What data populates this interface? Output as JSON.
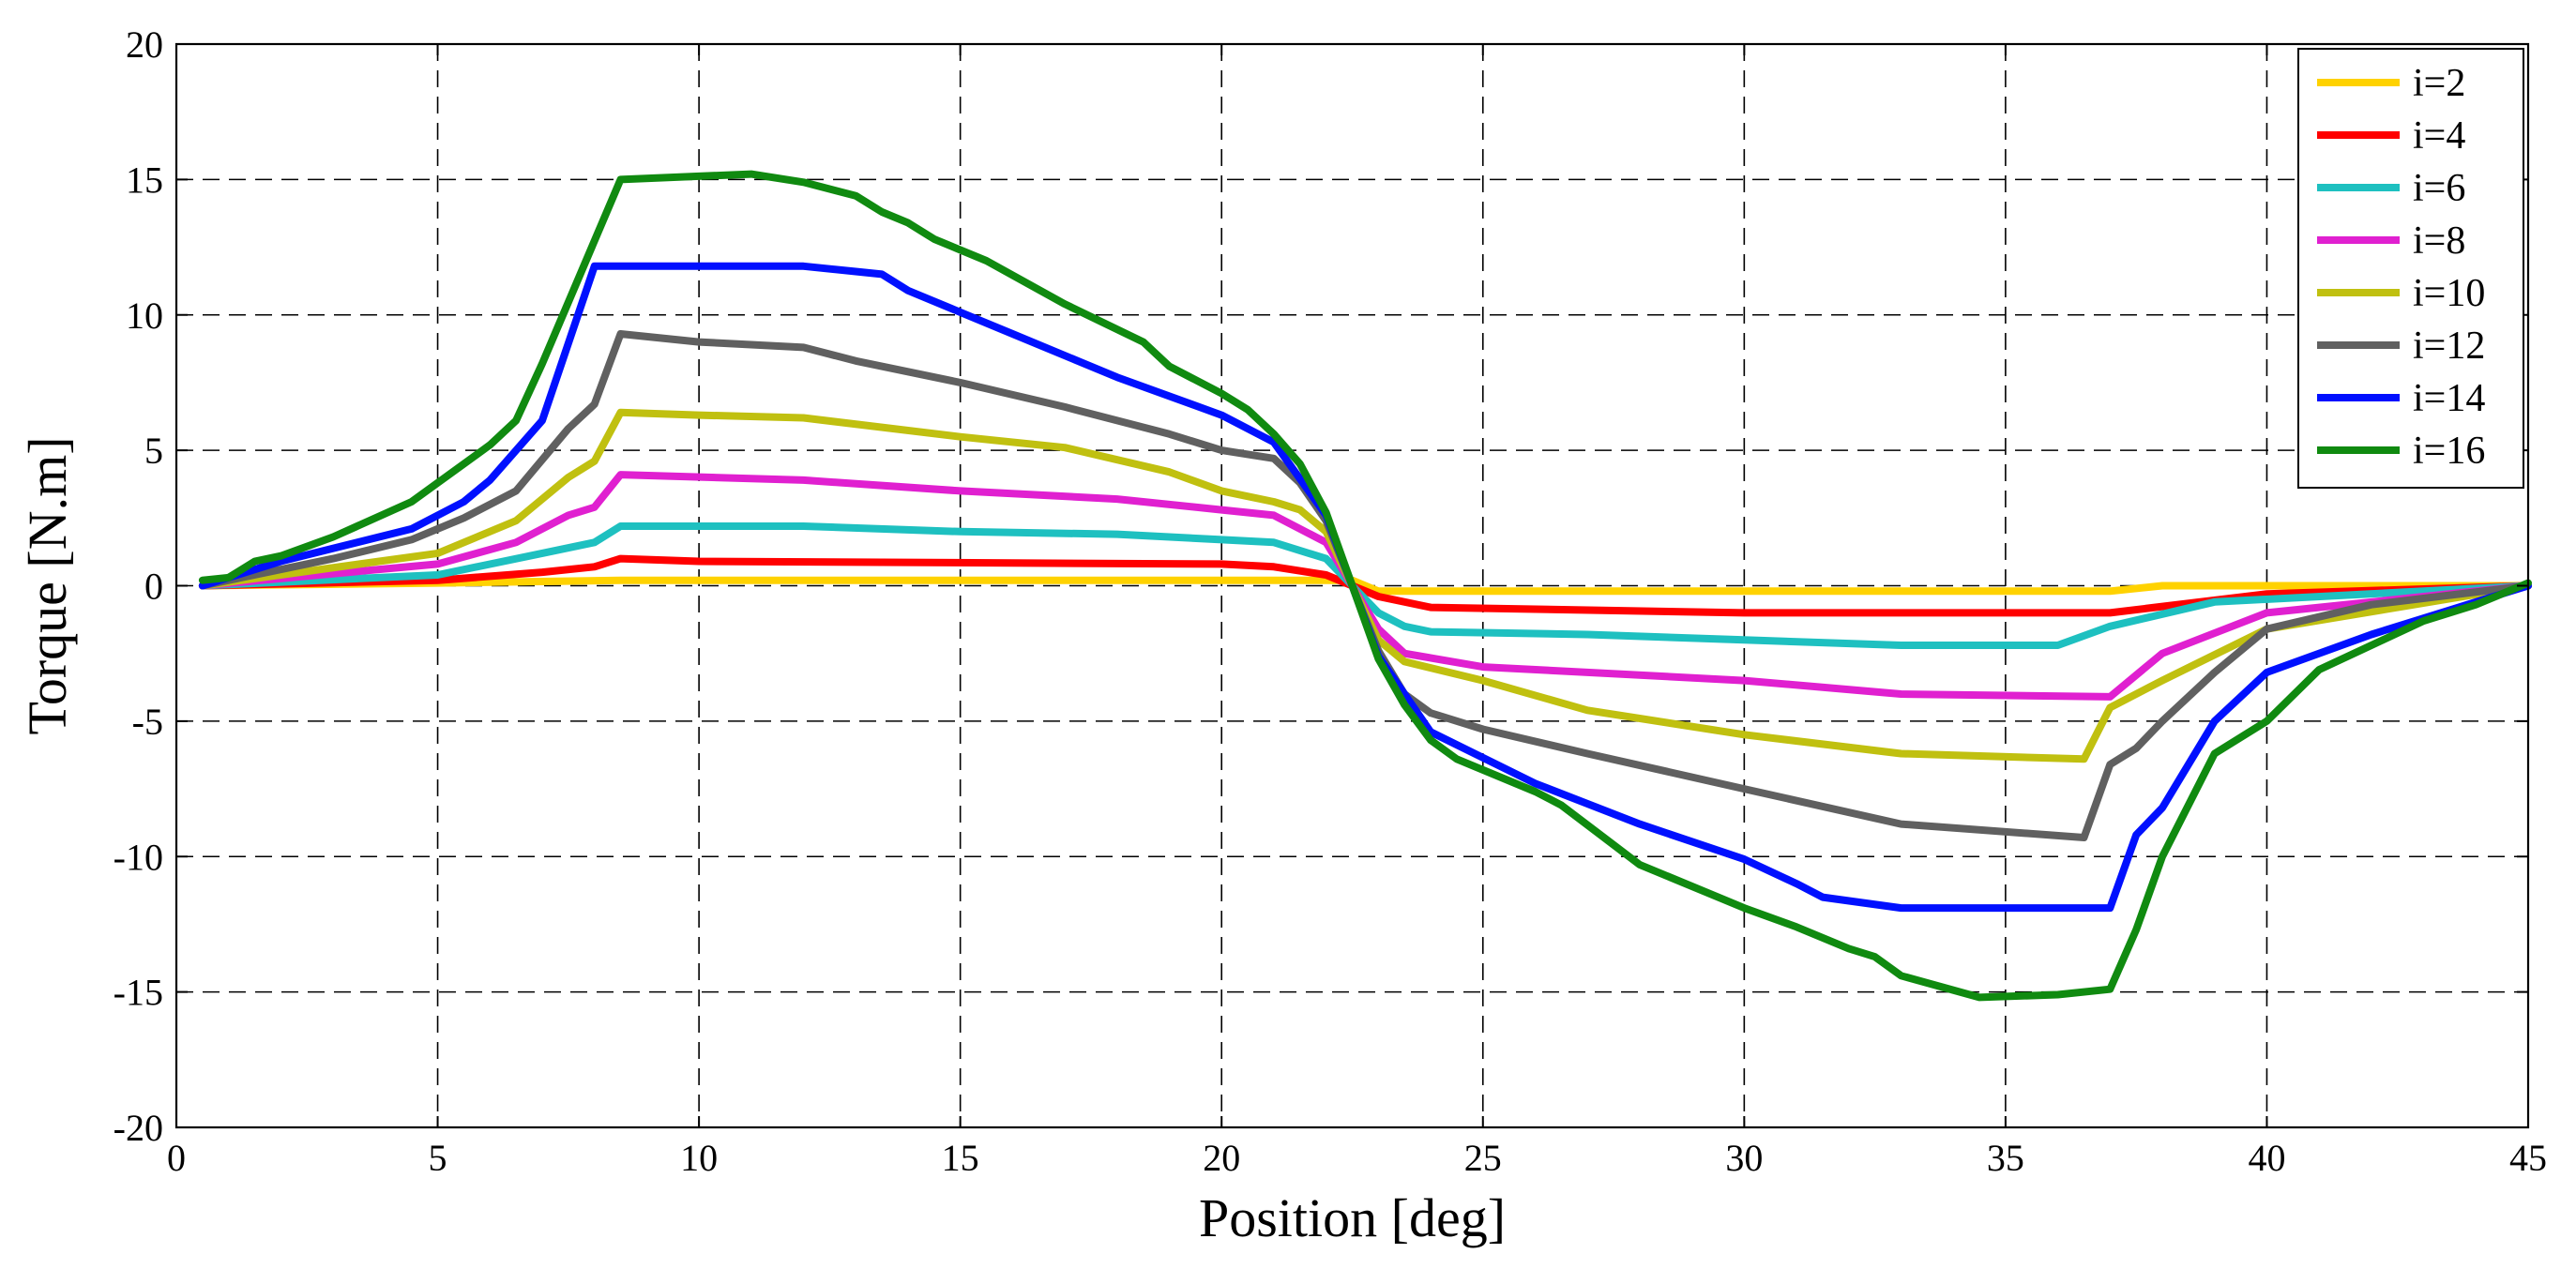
{
  "chart_data": {
    "type": "line",
    "title": "",
    "xlabel": "Position [deg]",
    "ylabel": "Torque [N.m]",
    "xlim": [
      0,
      45
    ],
    "ylim": [
      -20,
      20
    ],
    "xticks": [
      0,
      5,
      10,
      15,
      20,
      25,
      30,
      35,
      40,
      45
    ],
    "yticks": [
      20,
      15,
      10,
      5,
      0,
      -5,
      -10,
      -15,
      -20
    ],
    "grid": true,
    "legend_position": "top-right",
    "series": [
      {
        "name": "i=2",
        "color": "#FFD200",
        "x": [
          0.5,
          5,
          8.5,
          22.5,
          23,
          37,
          38,
          45
        ],
        "y": [
          0,
          0.1,
          0.2,
          0.2,
          -0.2,
          -0.2,
          0,
          0
        ]
      },
      {
        "name": "i=4",
        "color": "#FF0000",
        "x": [
          0.5,
          5,
          7,
          8,
          8.5,
          10,
          20,
          21,
          22,
          22.5,
          23,
          24,
          30,
          36,
          37,
          40,
          45
        ],
        "y": [
          0,
          0.2,
          0.5,
          0.7,
          1.0,
          0.9,
          0.8,
          0.7,
          0.4,
          0,
          -0.4,
          -0.8,
          -1.0,
          -1.0,
          -1.0,
          -0.3,
          0
        ]
      },
      {
        "name": "i=6",
        "color": "#1EC0C0",
        "x": [
          0.5,
          5,
          7,
          8,
          8.5,
          12,
          15,
          18,
          20,
          21,
          22,
          22.5,
          23,
          23.5,
          24,
          27,
          30,
          33,
          36,
          37,
          39,
          45
        ],
        "y": [
          0,
          0.4,
          1.2,
          1.6,
          2.2,
          2.2,
          2.0,
          1.9,
          1.7,
          1.6,
          1.0,
          0,
          -1.0,
          -1.5,
          -1.7,
          -1.8,
          -2.0,
          -2.2,
          -2.2,
          -1.5,
          -0.6,
          0
        ]
      },
      {
        "name": "i=8",
        "color": "#E020D0",
        "x": [
          0.5,
          5,
          6.5,
          7.5,
          8,
          8.5,
          12,
          15,
          18,
          20,
          21,
          22,
          22.5,
          23,
          23.5,
          25,
          30,
          33,
          37,
          38,
          40,
          45
        ],
        "y": [
          0,
          0.8,
          1.6,
          2.6,
          2.9,
          4.1,
          3.9,
          3.5,
          3.2,
          2.8,
          2.6,
          1.6,
          0,
          -1.6,
          -2.5,
          -3.0,
          -3.5,
          -4.0,
          -4.1,
          -2.5,
          -1.0,
          0
        ]
      },
      {
        "name": "i=10",
        "color": "#C0C010",
        "x": [
          0.5,
          5,
          6.5,
          7.5,
          8,
          8.5,
          10,
          12,
          15,
          17,
          19,
          20,
          21,
          21.5,
          22,
          22.5,
          23,
          23.5,
          25,
          27,
          30,
          33,
          36.5,
          37,
          38,
          40,
          45
        ],
        "y": [
          0,
          1.2,
          2.4,
          4.0,
          4.6,
          6.4,
          6.3,
          6.2,
          5.5,
          5.1,
          4.2,
          3.5,
          3.1,
          2.8,
          2.0,
          0,
          -2.0,
          -2.8,
          -3.5,
          -4.6,
          -5.5,
          -6.2,
          -6.4,
          -4.5,
          -3.5,
          -1.6,
          0
        ]
      },
      {
        "name": "i=12",
        "color": "#606060",
        "x": [
          0.5,
          3,
          4.5,
          5.5,
          6.5,
          7.5,
          8,
          8.5,
          10,
          12,
          13,
          15,
          17,
          19,
          20,
          21,
          21.5,
          22,
          22.5,
          23,
          23.5,
          24,
          25,
          27,
          30,
          33,
          36.5,
          37,
          37.5,
          38,
          39,
          40,
          42,
          45
        ],
        "y": [
          0,
          1.0,
          1.7,
          2.5,
          3.5,
          5.8,
          6.7,
          9.3,
          9.0,
          8.8,
          8.3,
          7.5,
          6.6,
          5.6,
          5.0,
          4.7,
          3.8,
          2.4,
          0,
          -2.4,
          -4.0,
          -4.7,
          -5.3,
          -6.2,
          -7.5,
          -8.8,
          -9.3,
          -6.6,
          -6.0,
          -5.0,
          -3.2,
          -1.6,
          -0.7,
          0
        ]
      },
      {
        "name": "i=14",
        "color": "#0010FF",
        "x": [
          0.5,
          2,
          4.5,
          5.5,
          6,
          7,
          8,
          10,
          12,
          13,
          13.5,
          14,
          15,
          16,
          18,
          20,
          21,
          22,
          22.5,
          23,
          24,
          26,
          28,
          30,
          31,
          31.5,
          33,
          37,
          37.5,
          38,
          39,
          40,
          42,
          44,
          45
        ],
        "y": [
          0,
          0.9,
          2.1,
          3.1,
          3.9,
          6.1,
          11.8,
          11.8,
          11.8,
          11.6,
          11.5,
          10.9,
          10.1,
          9.3,
          7.7,
          6.3,
          5.3,
          2.6,
          0,
          -2.6,
          -5.4,
          -7.3,
          -8.8,
          -10.1,
          -11.0,
          -11.5,
          -11.9,
          -11.9,
          -9.2,
          -8.2,
          -5.0,
          -3.2,
          -1.8,
          -0.6,
          0
        ]
      },
      {
        "name": "i=16",
        "color": "#108A10",
        "x": [
          0.5,
          1,
          1.5,
          2,
          3,
          4.5,
          5,
          6,
          6.5,
          7,
          8.5,
          11,
          12,
          13,
          13.5,
          14,
          14.5,
          15.5,
          17,
          18.5,
          19,
          20,
          20.5,
          21,
          21.5,
          22,
          22.5,
          23,
          23.5,
          24,
          24.5,
          26,
          26.5,
          28,
          30,
          31,
          32,
          32.5,
          33,
          34.5,
          36,
          37,
          37.5,
          38,
          39,
          40,
          41,
          42,
          43,
          44,
          45
        ],
        "y": [
          0.2,
          0.3,
          0.9,
          1.1,
          1.8,
          3.1,
          3.8,
          5.2,
          6.1,
          8.2,
          15.0,
          15.2,
          14.9,
          14.4,
          13.8,
          13.4,
          12.8,
          12.0,
          10.4,
          9.0,
          8.1,
          7.1,
          6.5,
          5.6,
          4.5,
          2.7,
          0,
          -2.7,
          -4.4,
          -5.7,
          -6.4,
          -7.6,
          -8.1,
          -10.3,
          -11.9,
          -12.6,
          -13.4,
          -13.7,
          -14.4,
          -15.2,
          -15.1,
          -14.9,
          -12.7,
          -10.0,
          -6.2,
          -5.0,
          -3.1,
          -2.2,
          -1.3,
          -0.7,
          0.1
        ]
      }
    ]
  }
}
